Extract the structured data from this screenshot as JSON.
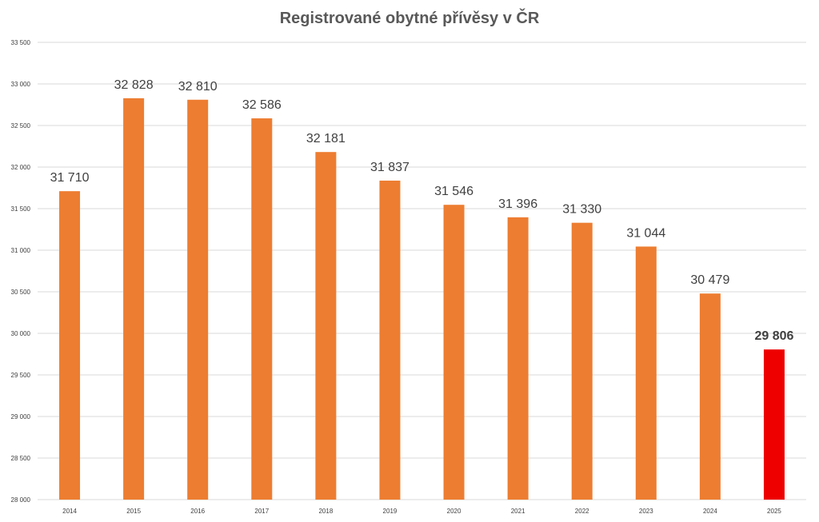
{
  "chart_data": {
    "type": "bar",
    "title": "Registrované obytné přívěsy v ČR",
    "xlabel": "",
    "ylabel": "",
    "ylim": [
      28000,
      33500
    ],
    "ytick_step": 500,
    "ytick_labels": [
      "28 000",
      "28 500",
      "29 000",
      "29 500",
      "30 000",
      "30 500",
      "31 000",
      "31 500",
      "32 000",
      "32 500",
      "33 000",
      "33 500"
    ],
    "categories": [
      "2014",
      "2015",
      "2016",
      "2017",
      "2018",
      "2019",
      "2020",
      "2021",
      "2022",
      "2023",
      "2024",
      "2025"
    ],
    "values": [
      31710,
      32828,
      32810,
      32586,
      32181,
      31837,
      31546,
      31396,
      31330,
      31044,
      30479,
      29806
    ],
    "value_labels": [
      "31 710",
      "32 828",
      "32 810",
      "32 586",
      "32 181",
      "31 837",
      "31 546",
      "31 396",
      "31 330",
      "31 044",
      "30 479",
      "29 806"
    ],
    "highlight_category": "2025",
    "grid": true,
    "legend": "none",
    "colors": {
      "bar": "#ED7D31",
      "highlight": "#EE0000",
      "grid": "#D9D9D9",
      "text": "#404040",
      "title": "#595959"
    }
  }
}
